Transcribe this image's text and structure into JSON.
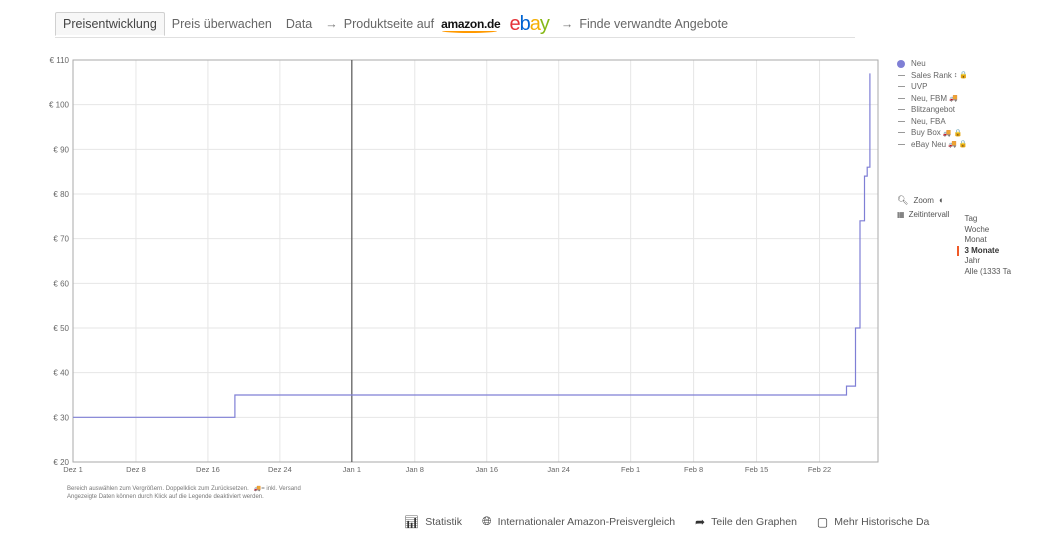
{
  "tabs": {
    "active": "Preisentwicklung",
    "items": [
      "Preis überwachen",
      "Data"
    ],
    "product_page": "Produktseite auf",
    "amazon_logo": "amazon.de",
    "ebay_logo": "ebay",
    "related": "Finde verwandte Angebote"
  },
  "legend": {
    "items": [
      {
        "label": "Neu",
        "kind": "dot",
        "color": "#7f7fd5"
      },
      {
        "label": "Sales Rank",
        "kind": "line",
        "icons": "↕ 🔒"
      },
      {
        "label": "UVP",
        "kind": "line",
        "icons": ""
      },
      {
        "label": "Neu, FBM",
        "kind": "line",
        "icons": "🚚"
      },
      {
        "label": "Blitzangebot",
        "kind": "line",
        "icons": ""
      },
      {
        "label": "Neu, FBA",
        "kind": "line",
        "icons": ""
      },
      {
        "label": "Buy Box",
        "kind": "line",
        "icons": "🚚 🔒"
      },
      {
        "label": "eBay Neu",
        "kind": "line",
        "icons": "🚚 🔒"
      }
    ]
  },
  "controls": {
    "zoom": "Zoom",
    "range_label": "Zeitintervall",
    "range_options": [
      "Tag",
      "Woche",
      "Monat",
      "3 Monate",
      "Jahr",
      "Alle (1333 Ta"
    ],
    "active_range": "3 Monate"
  },
  "notes": {
    "line1_a": "Bereich auswählen zum Vergrößern. Doppelklick zum Zurücksetzen.",
    "line1_b": "= inkl. Versand",
    "line2": "Angezeigte Daten können durch Klick auf die Legende deaktiviert werden."
  },
  "bottom": {
    "statistik": "Statistik",
    "intl": "Internationaler Amazon-Preisvergleich",
    "share": "Teile den Graphen",
    "history": "Mehr Historische Da"
  },
  "chart_data": {
    "type": "line",
    "x_ticks": [
      "Dez 1",
      "Dez 8",
      "Dez 16",
      "Dez 24",
      "Jan 1",
      "Jan 8",
      "Jan 16",
      "Jan 24",
      "Feb 1",
      "Feb 8",
      "Feb 15",
      "Feb 22"
    ],
    "y_ticks": [
      "€ 20",
      "€ 30",
      "€ 40",
      "€ 50",
      "€ 60",
      "€ 70",
      "€ 80",
      "€ 90",
      "€ 100",
      "€ 110"
    ],
    "ylim": [
      20,
      110
    ],
    "xlim": [
      "2021-12-01",
      "2022-02-28"
    ],
    "grid": true,
    "legend_position": "right",
    "series": [
      {
        "name": "Neu",
        "color": "#7f7fd5",
        "step": true,
        "points": [
          [
            "2021-12-01",
            30
          ],
          [
            "2021-12-19",
            30
          ],
          [
            "2021-12-19",
            35
          ],
          [
            "2022-02-25",
            35
          ],
          [
            "2022-02-25",
            37
          ],
          [
            "2022-02-26",
            37
          ],
          [
            "2022-02-26",
            50
          ],
          [
            "2022-02-26.5",
            50
          ],
          [
            "2022-02-26.5",
            74
          ],
          [
            "2022-02-27",
            74
          ],
          [
            "2022-02-27",
            84
          ],
          [
            "2022-02-27.3",
            84
          ],
          [
            "2022-02-27.3",
            86
          ],
          [
            "2022-02-27.6",
            86
          ],
          [
            "2022-02-27.6",
            107
          ]
        ]
      }
    ],
    "annotations": {
      "vertical_line_at": "Jan 1"
    }
  }
}
